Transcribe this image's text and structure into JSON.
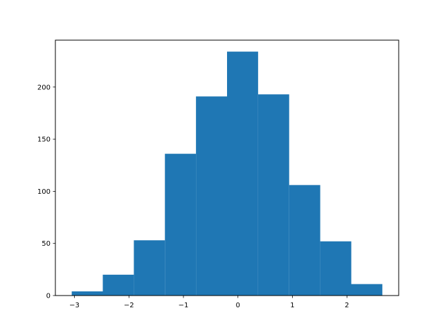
{
  "chart_data": {
    "type": "bar",
    "subtype": "histogram",
    "bin_edges": [
      -3.05,
      -2.48,
      -1.91,
      -1.34,
      -0.77,
      -0.2,
      0.37,
      0.94,
      1.51,
      2.08,
      2.65
    ],
    "values": [
      4,
      20,
      53,
      136,
      191,
      234,
      193,
      106,
      52,
      11
    ],
    "title": "",
    "xlabel": "",
    "ylabel": "",
    "xlim": [
      -3.35,
      2.95
    ],
    "ylim": [
      0,
      245
    ],
    "xticks": [
      -3,
      -2,
      -1,
      0,
      1,
      2
    ],
    "xtick_labels": [
      "−3",
      "−2",
      "−1",
      "0",
      "1",
      "2"
    ],
    "yticks": [
      0,
      50,
      100,
      150,
      200
    ],
    "ytick_labels": [
      "0",
      "50",
      "100",
      "150",
      "200"
    ],
    "grid": false,
    "legend": "none",
    "bar_color": "#1f77b4"
  }
}
